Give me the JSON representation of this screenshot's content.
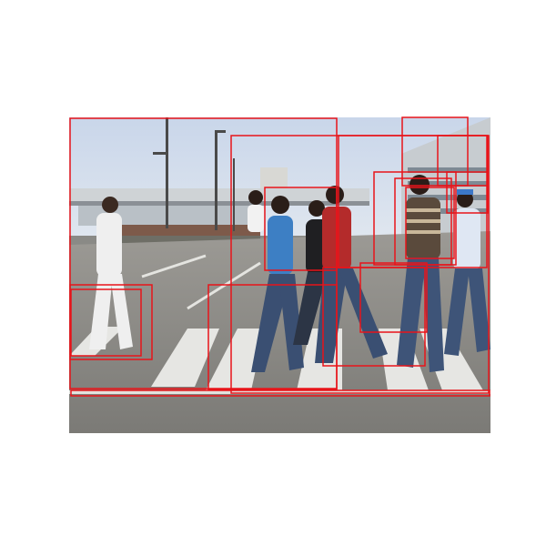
{
  "image": {
    "kind": "street crossing photo with detection boxes",
    "box_color": "#e8141a",
    "detection_boxes": [
      {
        "id": "box-1"
      },
      {
        "id": "box-2"
      },
      {
        "id": "box-3"
      },
      {
        "id": "box-4"
      },
      {
        "id": "box-5"
      },
      {
        "id": "box-6"
      },
      {
        "id": "box-7"
      },
      {
        "id": "box-8"
      },
      {
        "id": "box-9"
      },
      {
        "id": "box-10"
      },
      {
        "id": "box-11"
      },
      {
        "id": "box-12"
      },
      {
        "id": "box-13"
      },
      {
        "id": "box-14"
      },
      {
        "id": "box-15"
      },
      {
        "id": "box-16"
      }
    ]
  }
}
